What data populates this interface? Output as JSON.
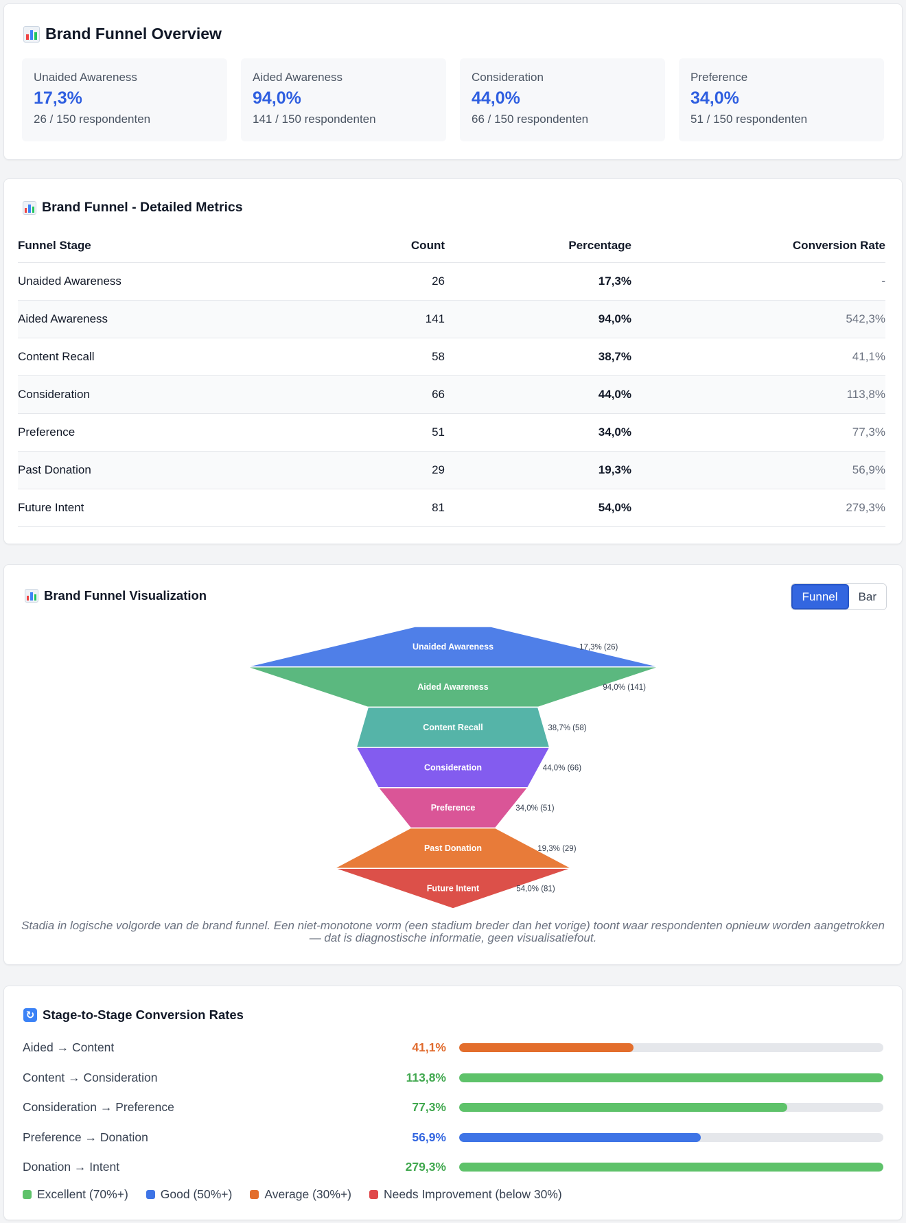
{
  "overview": {
    "title": "Brand Funnel Overview",
    "kpis": [
      {
        "label": "Unaided Awareness",
        "value": "17,3%",
        "sub": "26 / 150 respondenten"
      },
      {
        "label": "Aided Awareness",
        "value": "94,0%",
        "sub": "141 / 150 respondenten"
      },
      {
        "label": "Consideration",
        "value": "44,0%",
        "sub": "66 / 150 respondenten"
      },
      {
        "label": "Preference",
        "value": "34,0%",
        "sub": "51 / 150 respondenten"
      }
    ]
  },
  "metrics": {
    "title": "Brand Funnel - Detailed Metrics",
    "headers": [
      "Funnel Stage",
      "Count",
      "Percentage",
      "Conversion Rate"
    ],
    "rows": [
      {
        "stage": "Unaided Awareness",
        "count": "26",
        "pct": "17,3%",
        "conv": "-"
      },
      {
        "stage": "Aided Awareness",
        "count": "141",
        "pct": "94,0%",
        "conv": "542,3%"
      },
      {
        "stage": "Content Recall",
        "count": "58",
        "pct": "38,7%",
        "conv": "41,1%"
      },
      {
        "stage": "Consideration",
        "count": "66",
        "pct": "44,0%",
        "conv": "113,8%"
      },
      {
        "stage": "Preference",
        "count": "51",
        "pct": "34,0%",
        "conv": "77,3%"
      },
      {
        "stage": "Past Donation",
        "count": "29",
        "pct": "19,3%",
        "conv": "56,9%"
      },
      {
        "stage": "Future Intent",
        "count": "81",
        "pct": "54,0%",
        "conv": "279,3%"
      }
    ]
  },
  "visualization": {
    "title": "Brand Funnel Visualization",
    "toggle": {
      "funnel": "Funnel",
      "bar": "Bar",
      "active": "funnel"
    },
    "caption": "Stadia in logische volgorde van de brand funnel. Een niet-monotone vorm (een stadium breder dan het vorige) toont waar respondenten opnieuw worden aangetrokken — dat is diagnostische informatie, geen visualisatiefout."
  },
  "chart_data": {
    "type": "funnel",
    "stages": [
      {
        "name": "Unaided Awareness",
        "value": 17.3,
        "count": 26,
        "label": "17,3% (26)",
        "color": "#4f7fe8"
      },
      {
        "name": "Aided Awareness",
        "value": 94.0,
        "count": 141,
        "label": "94,0% (141)",
        "color": "#5bb87f"
      },
      {
        "name": "Content Recall",
        "value": 38.7,
        "count": 58,
        "label": "38,7% (58)",
        "color": "#55b4a8"
      },
      {
        "name": "Consideration",
        "value": 44.0,
        "count": 66,
        "label": "44,0% (66)",
        "color": "#835cef"
      },
      {
        "name": "Preference",
        "value": 34.0,
        "count": 51,
        "label": "34,0% (51)",
        "color": "#da5597"
      },
      {
        "name": "Past Donation",
        "value": 19.3,
        "count": 29,
        "label": "19,3% (29)",
        "color": "#e87b39"
      },
      {
        "name": "Future Intent",
        "value": 54.0,
        "count": 81,
        "label": "54,0% (81)",
        "color": "#dc5049"
      }
    ]
  },
  "conversion": {
    "title": "Stage-to-Stage Conversion Rates",
    "rows": [
      {
        "label": "Aided → Content",
        "value": "41,1%",
        "rate": 41.1,
        "color": "#e0692b"
      },
      {
        "label": "Content → Consideration",
        "value": "113,8%",
        "rate": 113.8,
        "color": "#41a84f"
      },
      {
        "label": "Consideration → Preference",
        "value": "77,3%",
        "rate": 77.3,
        "color": "#41a84f"
      },
      {
        "label": "Preference → Donation",
        "value": "56,9%",
        "rate": 56.9,
        "color": "#3366e0"
      },
      {
        "label": "Donation → Intent",
        "value": "279,3%",
        "rate": 279.3,
        "color": "#41a84f"
      }
    ],
    "bar_colors": {
      "excellent": "#5ec26a",
      "good": "#3e74e6",
      "average": "#e36e2c"
    },
    "legend": [
      {
        "label": "Excellent (70%+)",
        "color": "#5ec26a"
      },
      {
        "label": "Good (50%+)",
        "color": "#3e74e6"
      },
      {
        "label": "Average (30%+)",
        "color": "#e36e2c"
      },
      {
        "label": "Needs Improvement (below 30%)",
        "color": "#e0484a"
      }
    ]
  }
}
